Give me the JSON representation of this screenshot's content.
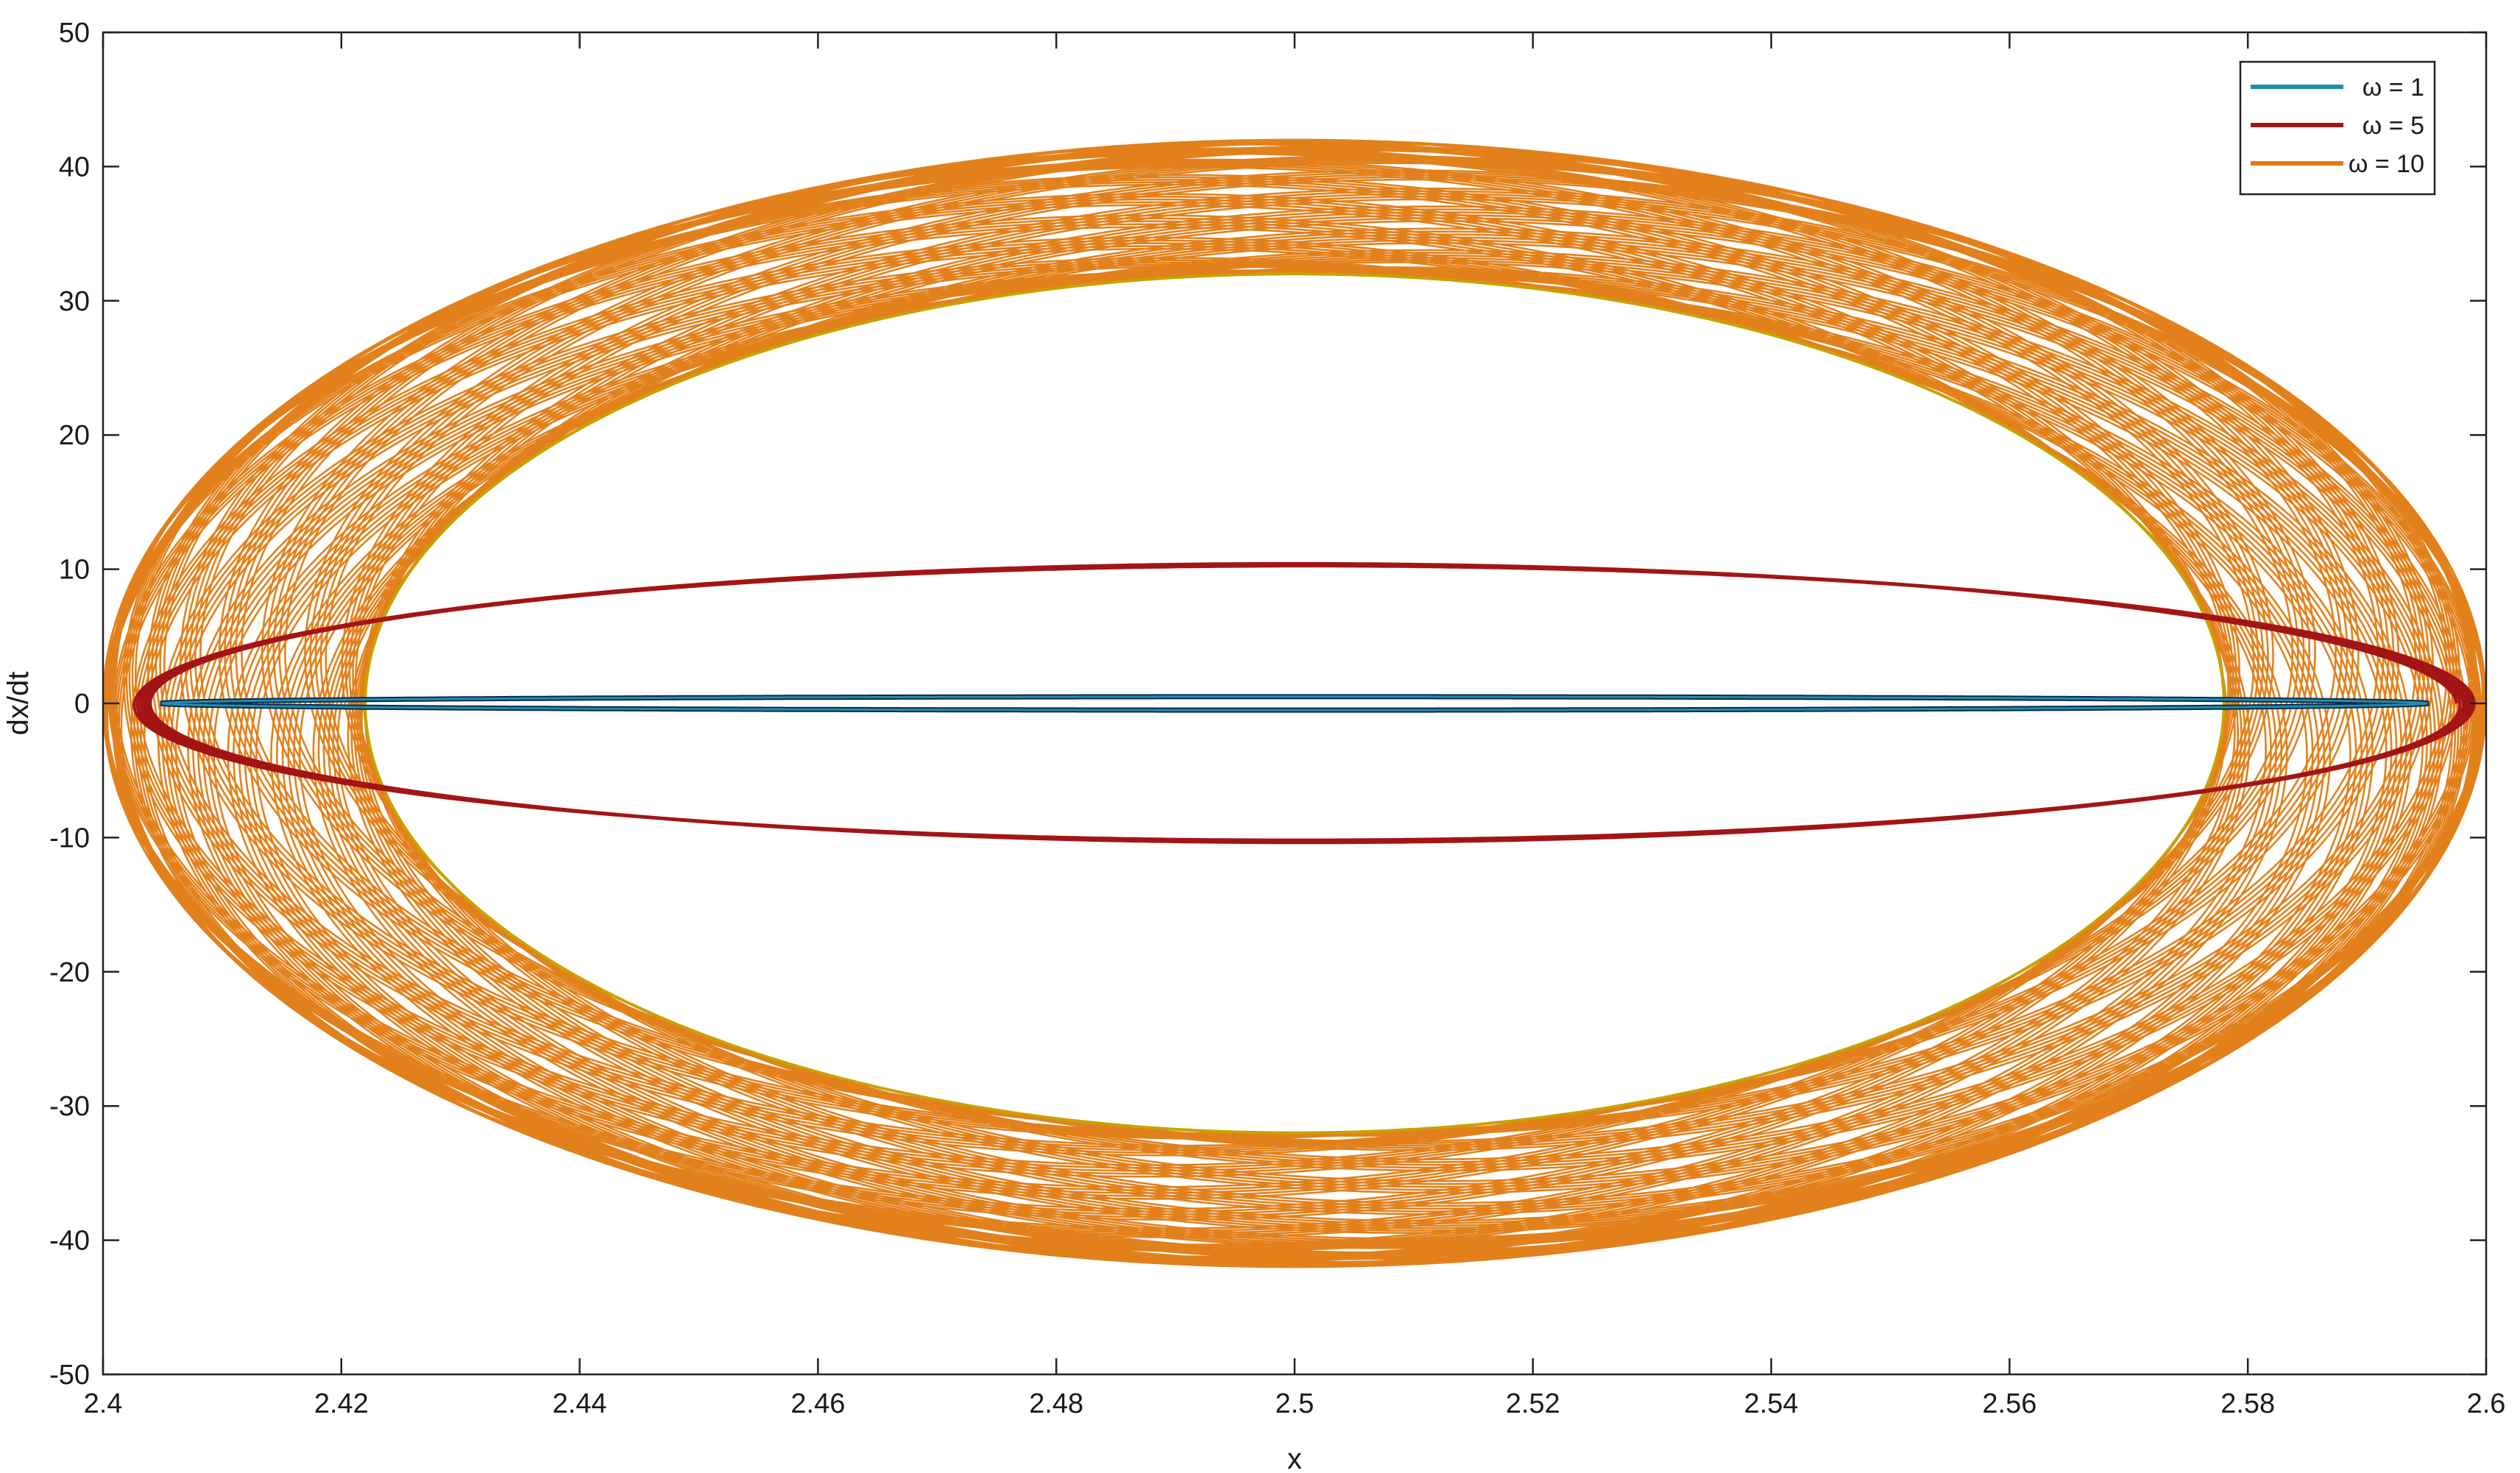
{
  "chart_data": {
    "type": "line",
    "xlabel": "x",
    "ylabel": "dx/dt",
    "xlim": [
      2.4,
      2.6
    ],
    "ylim": [
      -50,
      50
    ],
    "xticks": [
      "2.4",
      "2.42",
      "2.44",
      "2.46",
      "2.48",
      "2.5",
      "2.52",
      "2.54",
      "2.56",
      "2.58",
      "2.6"
    ],
    "yticks": [
      "50",
      "40",
      "30",
      "20",
      "10",
      "0",
      "-10",
      "-20",
      "-30",
      "-40",
      "-50"
    ],
    "legend_position": "top-right",
    "grid": false,
    "series": [
      {
        "name": "ω = 1",
        "color": "#1f8fb0",
        "shape": "flat ellipse",
        "x_range": [
          2.405,
          2.595
        ],
        "y_amplitude": 0.5,
        "x": [
          2.405,
          2.45,
          2.5,
          2.55,
          2.595
        ],
        "y": [
          0,
          0.4,
          0.5,
          0.4,
          0
        ]
      },
      {
        "name": "ω = 5",
        "color": "#a31515",
        "shape": "ellipse",
        "x_range": [
          2.401,
          2.599
        ],
        "y_amplitude": 10.3,
        "x": [
          2.401,
          2.42,
          2.45,
          2.5,
          2.55,
          2.58,
          2.599
        ],
        "y": [
          0,
          5.8,
          9.2,
          10.3,
          9.2,
          5.8,
          0
        ]
      },
      {
        "name": "ω = 10",
        "color": "#e07a10",
        "shape": "quasi-periodic band",
        "x_range": [
          2.4,
          2.6
        ],
        "outer_amplitude": 42,
        "inner_amplitude": 32,
        "inner_x_range": [
          2.422,
          2.578
        ],
        "x": [
          2.4,
          2.422,
          2.45,
          2.5,
          2.55,
          2.578,
          2.6
        ],
        "y": [
          0,
          25,
          37,
          42,
          37,
          25,
          0
        ]
      }
    ]
  }
}
